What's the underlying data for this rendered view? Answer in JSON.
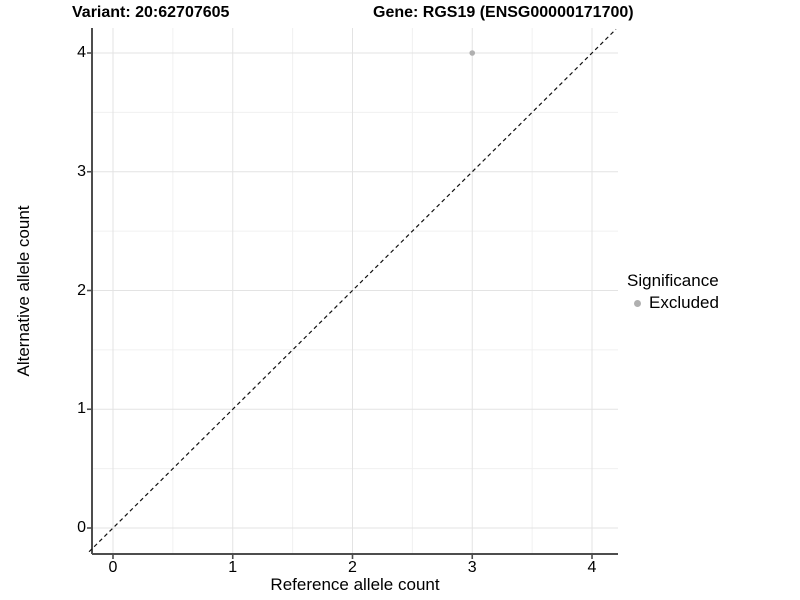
{
  "chart_data": {
    "type": "scatter",
    "titles": [
      "Variant: 20:62707605",
      "Gene: RGS19 (ENSG00000171700)"
    ],
    "xlabel": "Reference allele count",
    "ylabel": "Alternative allele count",
    "xlim": [
      -0.2,
      4.2
    ],
    "ylim": [
      -0.2,
      4.2
    ],
    "x_ticks": [
      0,
      1,
      2,
      3,
      4
    ],
    "y_ticks": [
      0,
      1,
      2,
      3,
      4
    ],
    "grid": {
      "major": true,
      "minor": true
    },
    "reference_line": {
      "type": "identity y=x",
      "style": "dashed",
      "color": "#111111"
    },
    "series": [
      {
        "name": "Excluded",
        "color": "#b0b0b0",
        "points": [
          {
            "x": 3,
            "y": 4
          }
        ]
      }
    ],
    "legend": {
      "title": "Significance",
      "position": "right",
      "entries": [
        {
          "label": "Excluded",
          "color": "#b0b0b0"
        }
      ]
    }
  },
  "colors": {
    "background": "#ffffff",
    "grid_major": "#e3e3e3",
    "grid_minor": "#f0f0f0",
    "axis": "#4d4d4d",
    "tick": "#4d4d4d",
    "text": "#000000"
  }
}
